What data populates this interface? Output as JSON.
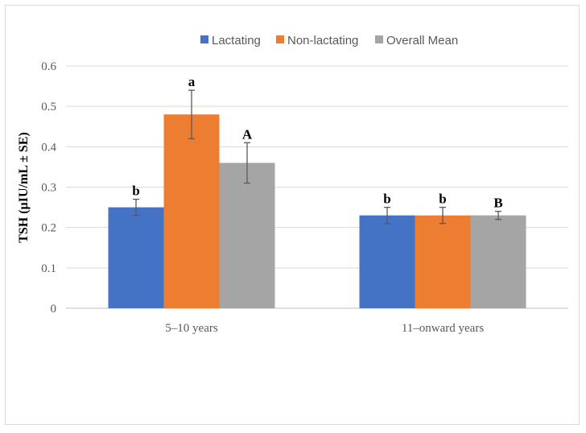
{
  "chart_data": {
    "type": "bar",
    "ylabel": "TSH (µIU/mL ± SE)",
    "ylim": [
      0,
      0.6
    ],
    "yticks": [
      "0",
      "0.1",
      "0.2",
      "0.3",
      "0.4",
      "0.5",
      "0.6"
    ],
    "grid": true,
    "legend_position": "top",
    "categories": [
      "5–10 years",
      "11–onward years"
    ],
    "series": [
      {
        "name": "Lactating",
        "color": "#4472C4",
        "values": [
          0.25,
          0.23
        ],
        "errors": [
          0.02,
          0.02
        ],
        "labels": [
          "b",
          "b"
        ]
      },
      {
        "name": "Non-lactating",
        "color": "#ED7D31",
        "values": [
          0.48,
          0.23
        ],
        "errors": [
          0.06,
          0.02
        ],
        "labels": [
          "a",
          "b"
        ]
      },
      {
        "name": "Overall Mean",
        "color": "#A5A5A5",
        "values": [
          0.36,
          0.23
        ],
        "errors": [
          0.05,
          0.01
        ],
        "labels": [
          "A",
          "B"
        ]
      }
    ]
  }
}
